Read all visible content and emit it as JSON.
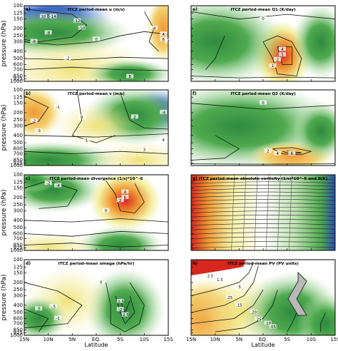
{
  "chart_data": [
    {
      "type": "heatmap",
      "label": "a)",
      "title": "ITCZ period-mean u (m/s)",
      "x_categories": [
        "15N",
        "10N",
        "5N",
        "EQ.",
        "5S",
        "10S",
        "15S"
      ],
      "y_levels": [
        100,
        125,
        150,
        200,
        250,
        300,
        400,
        500,
        600,
        700,
        850,
        925,
        1000
      ],
      "contour_labels": [
        "-14",
        "-12",
        "-10",
        "-8",
        "-6",
        "-4",
        "-2",
        "0",
        "2",
        "4",
        "6",
        "8",
        "10"
      ]
    },
    {
      "type": "heatmap",
      "label": "b)",
      "title": "ITCZ period-mean v (m/s)",
      "x_categories": [
        "15N",
        "10N",
        "5N",
        "EQ.",
        "5S",
        "10S",
        "15S"
      ],
      "y_levels": [
        100,
        125,
        150,
        200,
        250,
        300,
        400,
        500,
        600,
        700,
        850,
        925,
        1000
      ],
      "contour_labels": [
        "-3",
        "-2",
        "-1",
        "0",
        "1",
        "2",
        "3",
        "4",
        "-4"
      ]
    },
    {
      "type": "heatmap",
      "label": "c)",
      "title": "ITCZ period-mean divergence (1/s)*10^-6",
      "x_categories": [
        "15N",
        "10N",
        "5N",
        "EQ.",
        "5S",
        "10S",
        "15S"
      ],
      "y_levels": [
        100,
        125,
        150,
        200,
        250,
        300,
        400,
        500,
        600,
        700,
        850,
        925,
        1000
      ],
      "contour_labels": [
        "-2",
        "0",
        "2",
        "4",
        "6",
        "-4"
      ]
    },
    {
      "type": "heatmap",
      "label": "d)",
      "title": "ITCZ period-mean omega (hPa/hr)",
      "x_categories": [
        "15N",
        "10N",
        "5N",
        "EQ.",
        "5S",
        "10S",
        "15S"
      ],
      "y_levels": [
        100,
        125,
        150,
        200,
        250,
        300,
        400,
        500,
        600,
        700,
        850,
        925,
        1000
      ],
      "contour_labels": [
        "-1.5",
        "-2",
        "-2.5",
        ".5",
        "-.5",
        "-1",
        "0"
      ]
    },
    {
      "type": "heatmap",
      "label": "e)",
      "title": "ITCZ period-mean Q1 (K/day)",
      "x_categories": [
        "15N",
        "10N",
        "5N",
        "EQ.",
        "5S",
        "10S",
        "15S"
      ],
      "y_levels": [
        100,
        125,
        150,
        200,
        250,
        300,
        400,
        500,
        600,
        700,
        850,
        925,
        1000
      ],
      "contour_labels": [
        "0",
        "1",
        "2",
        "3",
        "4"
      ]
    },
    {
      "type": "heatmap",
      "label": "f)",
      "title": "ITCZ period-mean Q2 (K/day)",
      "x_categories": [
        "15N",
        "10N",
        "5N",
        "EQ.",
        "5S",
        "10S",
        "15S"
      ],
      "y_levels": [
        100,
        125,
        150,
        200,
        250,
        300,
        400,
        500,
        600,
        700,
        850,
        925,
        1000
      ],
      "contour_labels": [
        "0",
        "2",
        "4",
        "6"
      ]
    },
    {
      "type": "heatmap",
      "label": "g)",
      "title": "ITCZ period-mean absolute vorticity (1/s)*10^-5 and θ(K)",
      "x_categories": [
        "15N",
        "10N",
        "5N",
        "EQ.",
        "5S",
        "10S",
        "15S"
      ],
      "y_levels": [
        100,
        125,
        150,
        200,
        250,
        300,
        400,
        500,
        600,
        700,
        850,
        925,
        1000
      ],
      "contour_labels": []
    },
    {
      "type": "heatmap",
      "label": "h)",
      "title": "ITCZ period-mean PV (PV units)",
      "x_categories": [
        "15N",
        "10N",
        "5N",
        "EQ.",
        "5S",
        "10S",
        "15S"
      ],
      "y_levels": [
        100,
        125,
        150,
        200,
        250,
        300,
        400,
        500,
        600,
        700,
        850,
        925,
        1000
      ],
      "contour_labels": [
        "2.5",
        "1.5",
        ".5",
        ".25",
        ".15",
        ".20",
        ".25",
        ".10",
        ".05"
      ]
    }
  ],
  "axes": {
    "ylabel": "pressure (hPa)",
    "xlabel": "Latitude"
  },
  "colors": {
    "deep_blue": "#2b4fb0",
    "light_blue": "#9ab3e6",
    "green": "#4faa4f",
    "light_green": "#bfe3b3",
    "yellow": "#f4f0a4",
    "orange": "#ef9a35",
    "red": "#d7261e"
  }
}
